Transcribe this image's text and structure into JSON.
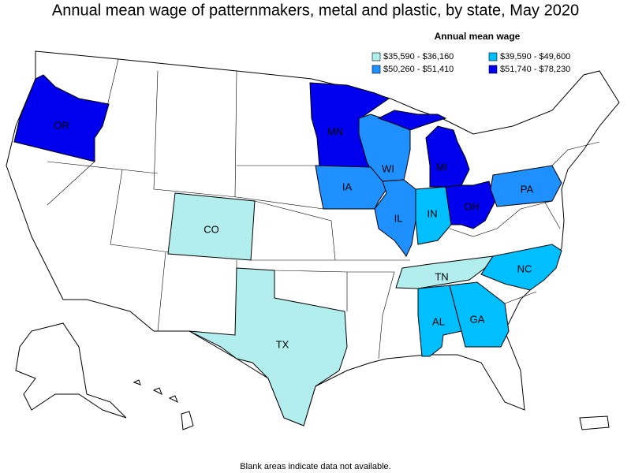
{
  "title": "Annual mean wage of patternmakers, metal and plastic, by state, May 2020",
  "legend": {
    "title": "Annual mean wage",
    "items": [
      {
        "label": "$35,590 - $36,160",
        "color": "#b2eeee"
      },
      {
        "label": "$39,590 - $49,600",
        "color": "#00bfff"
      },
      {
        "label": "$50,260 - $51,410",
        "color": "#1e90ff"
      },
      {
        "label": "$51,740 - $78,230",
        "color": "#0000ee"
      }
    ]
  },
  "states": [
    {
      "label": "OR",
      "tier": 3
    },
    {
      "label": "MN",
      "tier": 3
    },
    {
      "label": "WI",
      "tier": 2
    },
    {
      "label": "MI",
      "tier": 3
    },
    {
      "label": "IA",
      "tier": 2
    },
    {
      "label": "IL",
      "tier": 2
    },
    {
      "label": "IN",
      "tier": 1
    },
    {
      "label": "OH",
      "tier": 3
    },
    {
      "label": "PA",
      "tier": 2
    },
    {
      "label": "CO",
      "tier": 0
    },
    {
      "label": "TX",
      "tier": 0
    },
    {
      "label": "TN",
      "tier": 0
    },
    {
      "label": "NC",
      "tier": 1
    },
    {
      "label": "AL",
      "tier": 1
    },
    {
      "label": "GA",
      "tier": 1
    }
  ],
  "note": "Blank areas indicate data not available."
}
